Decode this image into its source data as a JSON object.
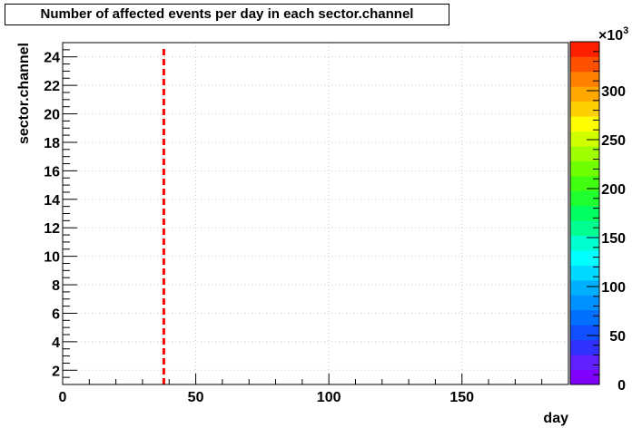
{
  "chart_data": {
    "type": "heatmap",
    "title": "Number of affected events per day in each sector.channel",
    "xlabel": "day",
    "ylabel": "sector.channel",
    "xlim": [
      0,
      190
    ],
    "ylim": [
      1,
      25
    ],
    "x_ticks": [
      "0",
      "50",
      "100",
      "150"
    ],
    "x_tick_values": [
      0,
      50,
      100,
      150
    ],
    "y_ticks": [
      "2",
      "4",
      "6",
      "8",
      "10",
      "12",
      "14",
      "16",
      "18",
      "20",
      "22",
      "24"
    ],
    "y_tick_values": [
      2,
      4,
      6,
      8,
      10,
      12,
      14,
      16,
      18,
      20,
      22,
      24
    ],
    "grid": true,
    "colorbar": {
      "range": [
        0,
        350
      ],
      "tick_labels": [
        "0",
        "50",
        "100",
        "150",
        "200",
        "250",
        "300"
      ],
      "tick_values": [
        0,
        50,
        100,
        150,
        200,
        250,
        300
      ],
      "multiplier": "×10",
      "multiplier_exponent": "3",
      "colors": [
        "#8000ff",
        "#6020ff",
        "#3030ff",
        "#1050ff",
        "#0070ff",
        "#0090ff",
        "#00b0ff",
        "#00d8ff",
        "#00ffff",
        "#00ffd0",
        "#00ff90",
        "#00ff60",
        "#20ff30",
        "#40ff10",
        "#70ff00",
        "#a0ff00",
        "#d0ff00",
        "#ffff00",
        "#ffd000",
        "#ffa800",
        "#ff8000",
        "#ff5000",
        "#ff2000"
      ]
    },
    "vertical_marker": {
      "x": 38,
      "color": "#ff0000",
      "style": "dashed"
    },
    "cells": []
  }
}
